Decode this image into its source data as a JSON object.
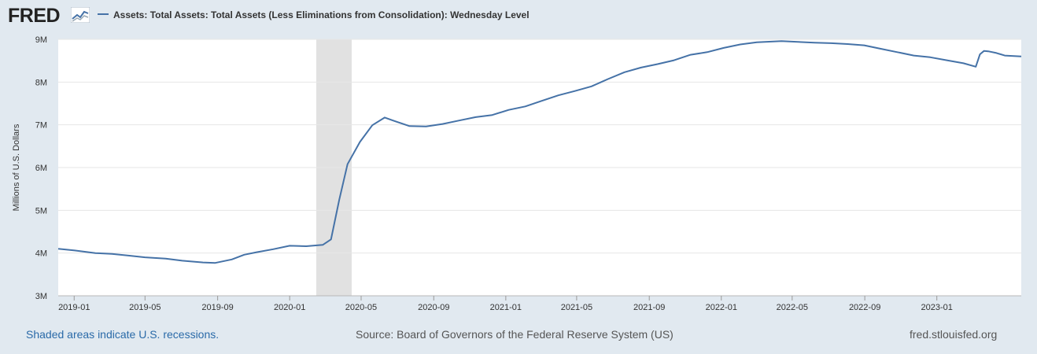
{
  "brand": {
    "logo_text": "FRED",
    "logo_icon": "chart-line-icon"
  },
  "legend": {
    "label": "Assets: Total Assets: Total Assets (Less Eliminations from Consolidation): Wednesday Level",
    "color": "#4572a7"
  },
  "footer": {
    "recession_note": "Shaded areas indicate U.S. recessions.",
    "source": "Source: Board of Governors of the Federal Reserve System (US)",
    "site": "fred.stlouisfed.org"
  },
  "chart_data": {
    "type": "line",
    "ylabel": "Millions of U.S. Dollars",
    "xlim": [
      "2018-12-05",
      "2023-05-24"
    ],
    "ylim": [
      3000000,
      9000000
    ],
    "y_ticks": [
      3000000,
      4000000,
      5000000,
      6000000,
      7000000,
      8000000,
      9000000
    ],
    "y_tick_labels": [
      "3M",
      "4M",
      "5M",
      "6M",
      "7M",
      "8M",
      "9M"
    ],
    "x_ticks": [
      "2019-01-01",
      "2019-05-01",
      "2019-09-01",
      "2020-01-01",
      "2020-05-01",
      "2020-09-01",
      "2021-01-01",
      "2021-05-01",
      "2021-09-01",
      "2022-01-01",
      "2022-05-01",
      "2022-09-01",
      "2023-01-01"
    ],
    "x_tick_labels": [
      "2019-01",
      "2019-05",
      "2019-09",
      "2020-01",
      "2020-05",
      "2020-09",
      "2021-01",
      "2021-05",
      "2021-09",
      "2022-01",
      "2022-05",
      "2022-09",
      "2023-01"
    ],
    "recessions": [
      {
        "start": "2020-02-15",
        "end": "2020-04-15"
      }
    ],
    "grid": true,
    "series": [
      {
        "color": "#4572a7",
        "x": [
          "2018-12-05",
          "2019-01-02",
          "2019-02-06",
          "2019-03-06",
          "2019-04-03",
          "2019-05-01",
          "2019-06-05",
          "2019-07-03",
          "2019-08-07",
          "2019-08-28",
          "2019-09-25",
          "2019-10-16",
          "2019-11-06",
          "2019-12-04",
          "2020-01-01",
          "2020-01-29",
          "2020-02-26",
          "2020-03-11",
          "2020-03-25",
          "2020-04-08",
          "2020-04-29",
          "2020-05-20",
          "2020-06-10",
          "2020-06-24",
          "2020-07-22",
          "2020-08-19",
          "2020-09-16",
          "2020-10-14",
          "2020-11-11",
          "2020-12-09",
          "2021-01-06",
          "2021-02-03",
          "2021-03-03",
          "2021-03-31",
          "2021-04-28",
          "2021-05-26",
          "2021-06-23",
          "2021-07-21",
          "2021-08-18",
          "2021-09-15",
          "2021-10-13",
          "2021-11-10",
          "2021-12-08",
          "2022-01-05",
          "2022-02-02",
          "2022-03-02",
          "2022-04-13",
          "2022-05-11",
          "2022-06-08",
          "2022-07-06",
          "2022-08-03",
          "2022-08-31",
          "2022-09-28",
          "2022-10-26",
          "2022-11-23",
          "2022-12-21",
          "2023-01-18",
          "2023-02-15",
          "2023-03-08",
          "2023-03-15",
          "2023-03-22",
          "2023-03-29",
          "2023-04-12",
          "2023-04-26",
          "2023-05-24"
        ],
        "y": [
          4100000,
          4060000,
          4000000,
          3980000,
          3940000,
          3900000,
          3870000,
          3820000,
          3780000,
          3770000,
          3850000,
          3960000,
          4020000,
          4090000,
          4170000,
          4160000,
          4190000,
          4320000,
          5250000,
          6080000,
          6600000,
          6990000,
          7170000,
          7100000,
          6970000,
          6960000,
          7020000,
          7100000,
          7180000,
          7230000,
          7350000,
          7430000,
          7560000,
          7690000,
          7790000,
          7900000,
          8070000,
          8230000,
          8340000,
          8420000,
          8510000,
          8640000,
          8700000,
          8800000,
          8880000,
          8930000,
          8960000,
          8940000,
          8920000,
          8910000,
          8890000,
          8860000,
          8780000,
          8700000,
          8620000,
          8580000,
          8510000,
          8440000,
          8360000,
          8650000,
          8730000,
          8720000,
          8680000,
          8620000,
          8600000
        ]
      }
    ]
  }
}
